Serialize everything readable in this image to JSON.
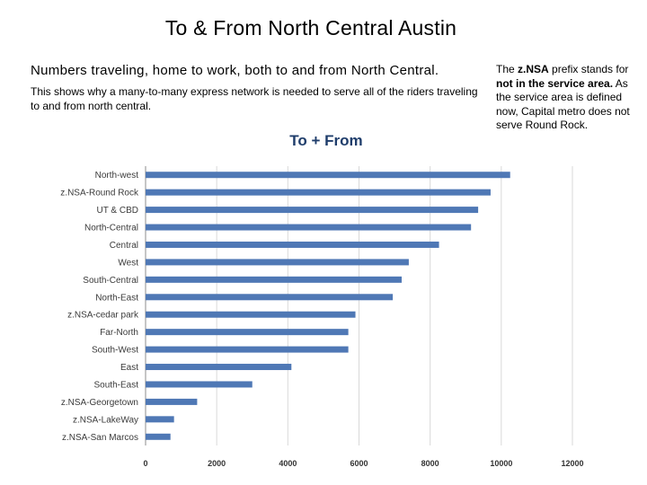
{
  "slide": {
    "title": "To & From North Central Austin",
    "lead": "Numbers traveling, home to work, both to and from North Central.",
    "body": "This shows why a many-to-many express network is needed to serve all of the riders traveling to and from north central.",
    "note": {
      "part1": "The ",
      "bold1": "z.NSA",
      "part2": " prefix stands for ",
      "bold2": "not in the service area.",
      "part3": " As the service area is defined now, Capital metro does not serve Round Rock."
    }
  },
  "chart_data": {
    "type": "bar",
    "orientation": "horizontal",
    "title": "To + From",
    "xlabel": "",
    "ylabel": "",
    "xlim": [
      0,
      12000
    ],
    "ticks": [
      0,
      2000,
      4000,
      6000,
      8000,
      10000,
      12000
    ],
    "grid": true,
    "legend": "none",
    "bar_color": "#4f78b5",
    "grid_color": "#d9d9d9",
    "categories": [
      "North-west",
      "z.NSA-Round Rock",
      "UT & CBD",
      "North-Central",
      "Central",
      "West",
      "South-Central",
      "North-East",
      "z.NSA-cedar park",
      "Far-North",
      "South-West",
      "East",
      "South-East",
      "z.NSA-Georgetown",
      "z.NSA-LakeWay",
      "z.NSA-San Marcos"
    ],
    "values": [
      10250,
      9700,
      9350,
      9150,
      8250,
      7400,
      7200,
      6950,
      5900,
      5700,
      5700,
      4100,
      3000,
      1450,
      800,
      700
    ]
  }
}
